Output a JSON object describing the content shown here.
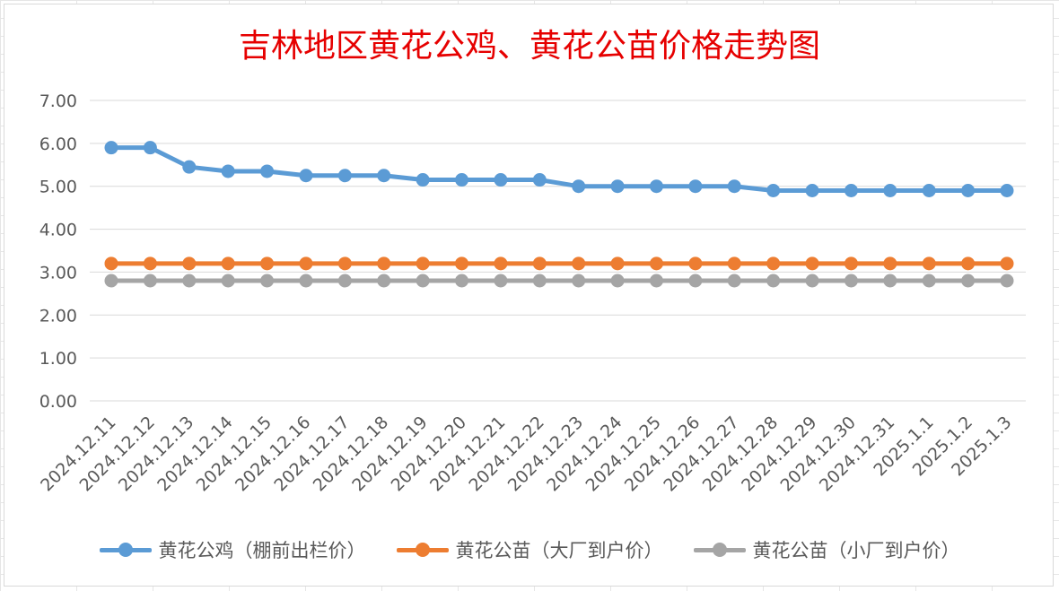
{
  "chart_data": {
    "type": "line",
    "title": "吉林地区黄花公鸡、黄花公苗价格走势图",
    "xlabel": "",
    "ylabel": "",
    "ylim": [
      0,
      7
    ],
    "yticks": [
      "0.00",
      "1.00",
      "2.00",
      "3.00",
      "4.00",
      "5.00",
      "6.00",
      "7.00"
    ],
    "grid": true,
    "legend_position": "bottom",
    "categories": [
      "2024.12.11",
      "2024.12.12",
      "2024.12.13",
      "2024.12.14",
      "2024.12.15",
      "2024.12.16",
      "2024.12.17",
      "2024.12.18",
      "2024.12.19",
      "2024.12.20",
      "2024.12.21",
      "2024.12.22",
      "2024.12.23",
      "2024.12.24",
      "2024.12.25",
      "2024.12.26",
      "2024.12.27",
      "2024.12.28",
      "2024.12.29",
      "2024.12.30",
      "2024.12.31",
      "2025.1.1",
      "2025.1.2",
      "2025.1.3"
    ],
    "series": [
      {
        "name": "黄花公鸡（棚前出栏价）",
        "color": "#5b9bd5",
        "values": [
          5.9,
          5.9,
          5.45,
          5.35,
          5.35,
          5.25,
          5.25,
          5.25,
          5.15,
          5.15,
          5.15,
          5.15,
          5.0,
          5.0,
          5.0,
          5.0,
          5.0,
          4.9,
          4.9,
          4.9,
          4.9,
          4.9,
          4.9,
          4.9
        ]
      },
      {
        "name": "黄花公苗（大厂到户价）",
        "color": "#ed7d31",
        "values": [
          3.2,
          3.2,
          3.2,
          3.2,
          3.2,
          3.2,
          3.2,
          3.2,
          3.2,
          3.2,
          3.2,
          3.2,
          3.2,
          3.2,
          3.2,
          3.2,
          3.2,
          3.2,
          3.2,
          3.2,
          3.2,
          3.2,
          3.2,
          3.2
        ]
      },
      {
        "name": "黄花公苗（小厂到户价）",
        "color": "#a5a5a5",
        "values": [
          2.8,
          2.8,
          2.8,
          2.8,
          2.8,
          2.8,
          2.8,
          2.8,
          2.8,
          2.8,
          2.8,
          2.8,
          2.8,
          2.8,
          2.8,
          2.8,
          2.8,
          2.8,
          2.8,
          2.8,
          2.8,
          2.8,
          2.8,
          2.8
        ]
      }
    ]
  }
}
